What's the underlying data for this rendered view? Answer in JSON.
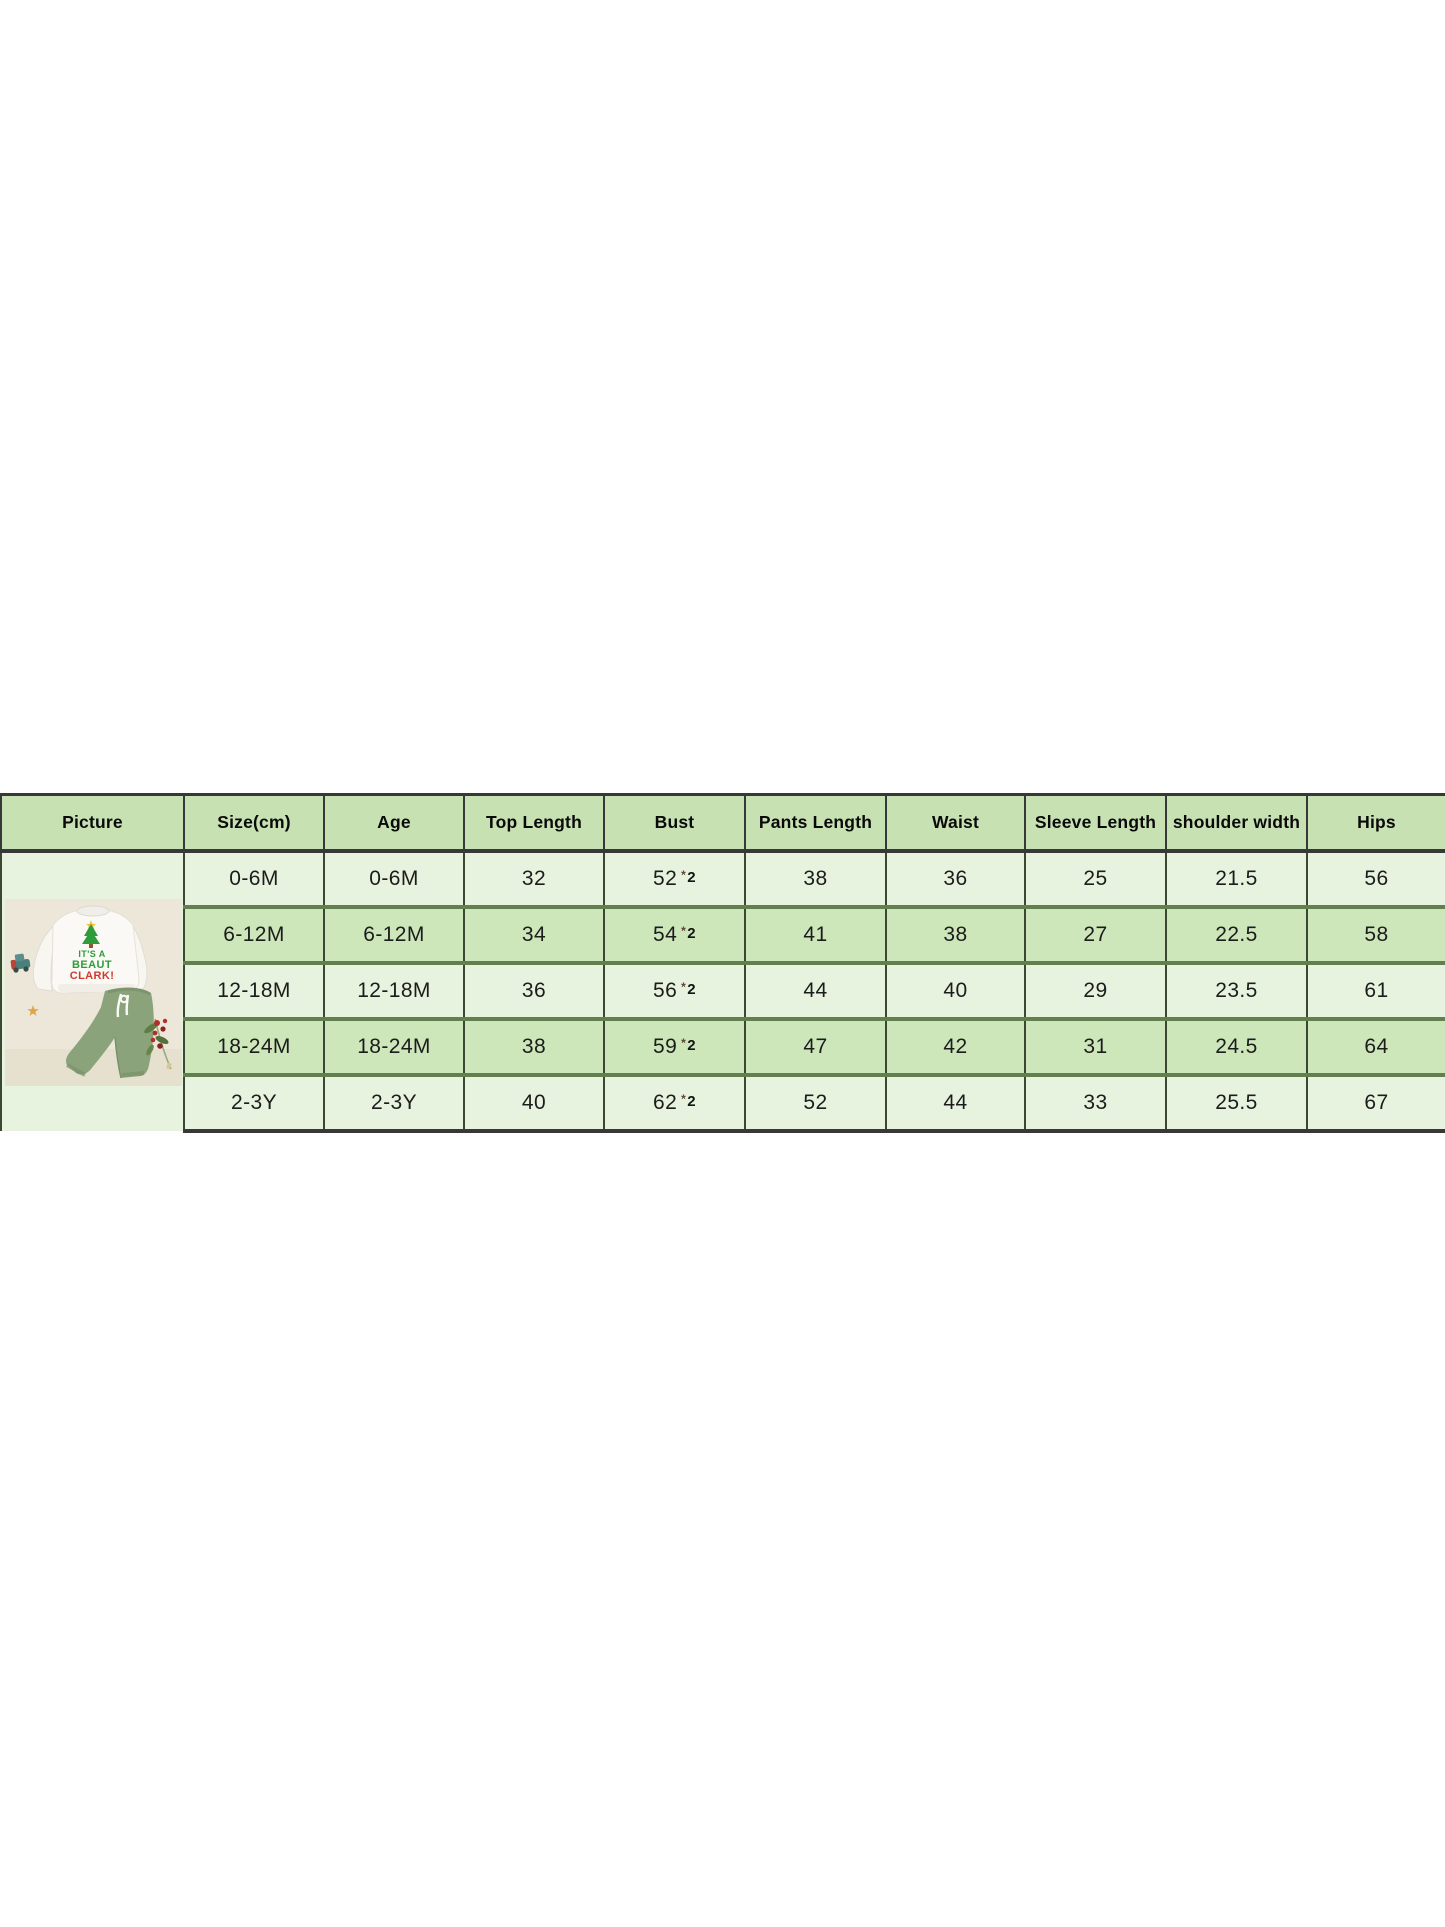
{
  "table": {
    "columns": [
      {
        "key": "picture",
        "label": "Picture"
      },
      {
        "key": "size",
        "label": "Size(cm)"
      },
      {
        "key": "age",
        "label": "Age"
      },
      {
        "key": "top_length",
        "label": "Top Length"
      },
      {
        "key": "bust",
        "label": "Bust"
      },
      {
        "key": "pants_length",
        "label": "Pants Length"
      },
      {
        "key": "waist",
        "label": "Waist"
      },
      {
        "key": "sleeve_length",
        "label": "Sleeve Length"
      },
      {
        "key": "shoulder_width",
        "label": "shoulder width"
      },
      {
        "key": "hips",
        "label": "Hips"
      }
    ],
    "rows": [
      {
        "size": "0-6M",
        "age": "0-6M",
        "top_length": "32",
        "bust": "52",
        "bust_star": "*",
        "bust_multiplier": "2",
        "pants_length": "38",
        "waist": "36",
        "sleeve_length": "25",
        "shoulder_width": "21.5",
        "hips": "56"
      },
      {
        "size": "6-12M",
        "age": "6-12M",
        "top_length": "34",
        "bust": "54",
        "bust_star": "*",
        "bust_multiplier": "2",
        "pants_length": "41",
        "waist": "38",
        "sleeve_length": "27",
        "shoulder_width": "22.5",
        "hips": "58"
      },
      {
        "size": "12-18M",
        "age": "12-18M",
        "top_length": "36",
        "bust": "56",
        "bust_star": "*",
        "bust_multiplier": "2",
        "pants_length": "44",
        "waist": "40",
        "sleeve_length": "29",
        "shoulder_width": "23.5",
        "hips": "61"
      },
      {
        "size": "18-24M",
        "age": "18-24M",
        "top_length": "38",
        "bust": "59",
        "bust_star": "*",
        "bust_multiplier": "2",
        "pants_length": "47",
        "waist": "42",
        "sleeve_length": "31",
        "shoulder_width": "24.5",
        "hips": "64"
      },
      {
        "size": "2-3Y",
        "age": "2-3Y",
        "top_length": "40",
        "bust": "62",
        "bust_star": "*",
        "bust_multiplier": "2",
        "pants_length": "52",
        "waist": "44",
        "sleeve_length": "33",
        "shoulder_width": "25.5",
        "hips": "67"
      }
    ]
  },
  "product_photo": {
    "shirt_graphic": {
      "line1": "IT'S A",
      "line2": "BEAUT",
      "line3": "CLARK!"
    }
  },
  "colors": {
    "header_green": "#c7e1b3",
    "row_light_green": "#e8f3df",
    "row_medium_green": "#cde6ba",
    "border_dark": "#383838",
    "border_green_vertical": "#394733",
    "border_green_horizontal": "#60804d",
    "photo_background": "#ece7d8",
    "shirt_text_green": "#2f9c3c",
    "shirt_text_red": "#cf3a2d",
    "pants_sage_green": "#8ba37b"
  }
}
